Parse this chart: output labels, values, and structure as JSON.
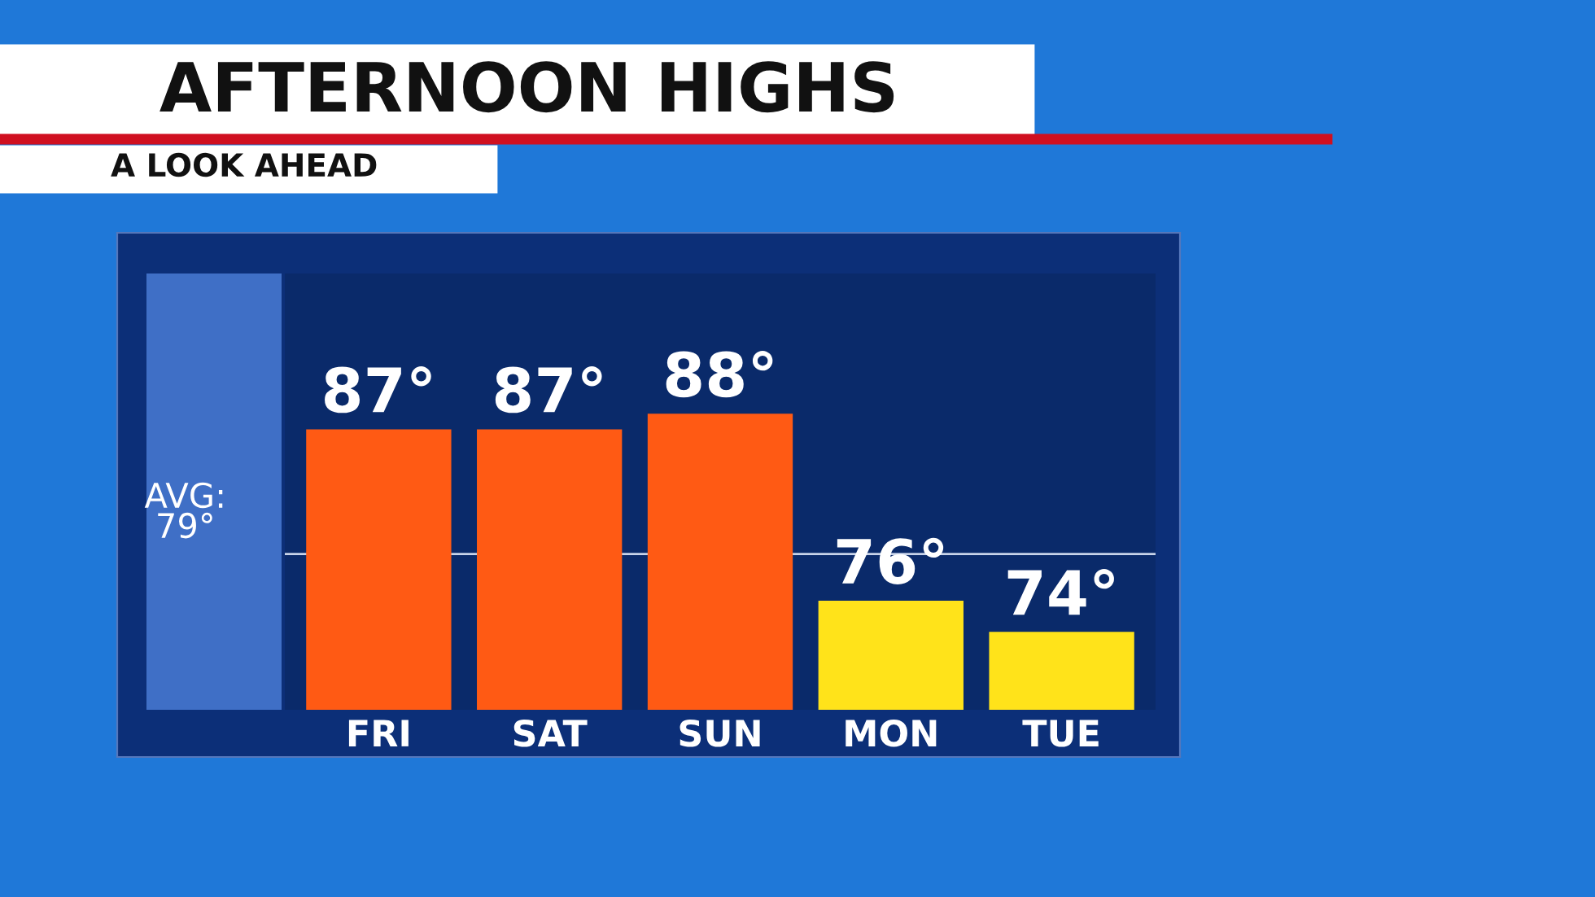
{
  "chart_data": {
    "type": "bar",
    "title": "AFTERNOON HIGHS",
    "subtitle": "A LOOK AHEAD",
    "categories": [
      "FRI",
      "SAT",
      "SUN",
      "MON",
      "TUE"
    ],
    "values": [
      87,
      87,
      88,
      76,
      74
    ],
    "value_labels": [
      "87°",
      "87°",
      "88°",
      "76°",
      "74°"
    ],
    "colors": [
      "#ff5a14",
      "#ff5a14",
      "#ff5a14",
      "#ffe31a",
      "#ffe31a"
    ],
    "ylim": [
      69,
      97
    ],
    "ref_lines": [
      {
        "axis": "y",
        "value": 79,
        "label": "AVG:\n79°",
        "color": "#c8d4ea"
      }
    ],
    "grid": false,
    "legend": false
  }
}
